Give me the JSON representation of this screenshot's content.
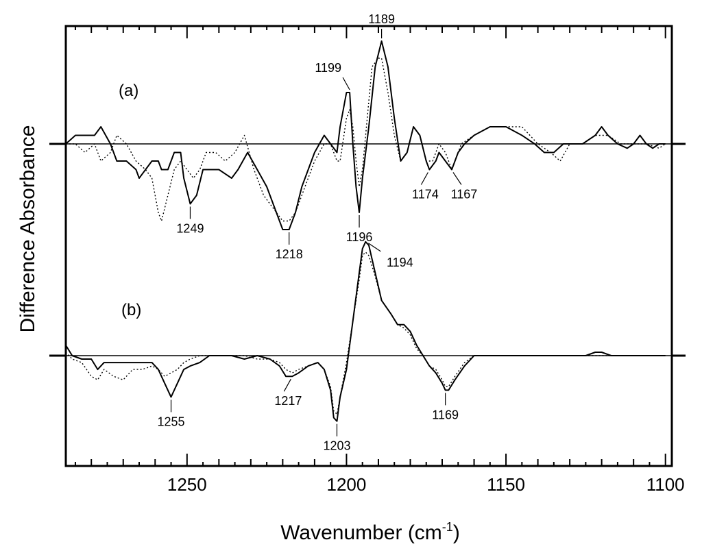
{
  "chart_data": {
    "type": "line",
    "xlabel": "Wavenumber (cm",
    "xlabel_sup": "-1",
    "xlabel_close": ")",
    "ylabel": "Difference Absorbance",
    "xlim": [
      1288,
      1098
    ],
    "x_reversed": true,
    "x_ticks": [
      "1250",
      "1200",
      "1150",
      "1100"
    ],
    "x_tick_values": [
      1250,
      1200,
      1150,
      1100
    ],
    "panels": [
      {
        "label": "(a)",
        "ylim": [
          -1.2,
          1.3
        ],
        "series": [
          {
            "style": "solid",
            "x": [
              1288,
              1285,
              1282,
              1279,
              1277,
              1274,
              1272,
              1269,
              1266,
              1265,
              1263,
              1261,
              1259,
              1258,
              1256,
              1254,
              1252,
              1251,
              1249,
              1247,
              1245,
              1243,
              1240,
              1236,
              1234,
              1231,
              1228,
              1225,
              1222,
              1220,
              1218,
              1216,
              1214,
              1212,
              1210,
              1207,
              1205,
              1203,
              1202,
              1200,
              1199,
              1198,
              1197,
              1196,
              1195,
              1193,
              1191,
              1189,
              1187,
              1185,
              1183,
              1181,
              1179,
              1177,
              1175,
              1174,
              1172,
              1171,
              1169,
              1167,
              1165,
              1163,
              1160,
              1155,
              1150,
              1145,
              1141,
              1138,
              1135,
              1132,
              1129,
              1126,
              1122,
              1120,
              1118,
              1115,
              1112,
              1110,
              1108,
              1106,
              1104,
              1102,
              1100
            ],
            "y": [
              0.0,
              0.1,
              0.1,
              0.1,
              0.2,
              0.0,
              -0.2,
              -0.2,
              -0.3,
              -0.4,
              -0.3,
              -0.2,
              -0.2,
              -0.3,
              -0.3,
              -0.1,
              -0.1,
              -0.4,
              -0.7,
              -0.6,
              -0.3,
              -0.3,
              -0.3,
              -0.4,
              -0.3,
              -0.1,
              -0.3,
              -0.5,
              -0.8,
              -1.0,
              -1.0,
              -0.8,
              -0.5,
              -0.3,
              -0.1,
              0.1,
              0.0,
              -0.1,
              0.2,
              0.6,
              0.6,
              0.0,
              -0.5,
              -0.8,
              -0.4,
              0.2,
              0.9,
              1.2,
              0.9,
              0.3,
              -0.2,
              -0.1,
              0.2,
              0.1,
              -0.2,
              -0.3,
              -0.2,
              -0.1,
              -0.2,
              -0.3,
              -0.1,
              0.0,
              0.1,
              0.2,
              0.2,
              0.1,
              0.0,
              -0.1,
              -0.1,
              0.0,
              0.0,
              0.0,
              0.1,
              0.2,
              0.1,
              0.0,
              -0.05,
              0.0,
              0.1,
              0.0,
              -0.05,
              0.0,
              0.0
            ]
          },
          {
            "style": "dotted",
            "x": [
              1288,
              1285,
              1282,
              1279,
              1277,
              1274,
              1272,
              1269,
              1266,
              1263,
              1261,
              1259,
              1258,
              1256,
              1254,
              1252,
              1250,
              1248,
              1246,
              1244,
              1241,
              1238,
              1235,
              1232,
              1229,
              1226,
              1222,
              1220,
              1218,
              1216,
              1213,
              1210,
              1207,
              1205,
              1203,
              1202,
              1200,
              1199,
              1198,
              1197,
              1196,
              1195,
              1193,
              1192,
              1190,
              1189,
              1187,
              1185,
              1183,
              1181,
              1179,
              1177,
              1175,
              1173,
              1171,
              1169,
              1167,
              1164,
              1160,
              1155,
              1150,
              1145,
              1140,
              1136,
              1133,
              1130,
              1126,
              1122,
              1118,
              1114,
              1110,
              1106,
              1102,
              1100
            ],
            "y": [
              0.0,
              0.0,
              -0.1,
              0.0,
              -0.2,
              -0.1,
              0.1,
              0.0,
              -0.2,
              -0.3,
              -0.4,
              -0.8,
              -0.9,
              -0.6,
              -0.3,
              -0.2,
              -0.3,
              -0.4,
              -0.3,
              -0.1,
              -0.1,
              -0.2,
              -0.1,
              0.1,
              -0.3,
              -0.6,
              -0.8,
              -0.9,
              -0.9,
              -0.8,
              -0.5,
              -0.2,
              0.0,
              0.0,
              -0.2,
              -0.2,
              0.3,
              0.4,
              0.2,
              -0.2,
              -0.5,
              -0.3,
              0.5,
              0.9,
              1.0,
              1.0,
              0.6,
              0.1,
              -0.2,
              -0.1,
              0.2,
              0.1,
              -0.2,
              -0.2,
              0.0,
              -0.1,
              -0.3,
              0.0,
              0.1,
              0.2,
              0.2,
              0.2,
              0.0,
              -0.1,
              -0.2,
              0.0,
              0.0,
              0.1,
              0.1,
              0.0,
              0.0,
              0.0,
              -0.05,
              0.0
            ]
          }
        ],
        "annotations": [
          {
            "text": "1189",
            "x": 1189,
            "y": 1.2,
            "side": "top"
          },
          {
            "text": "1199",
            "x": 1199,
            "y": 0.6,
            "side": "top-left"
          },
          {
            "text": "1249",
            "x": 1249,
            "y": -0.7,
            "side": "bottom"
          },
          {
            "text": "1218",
            "x": 1218,
            "y": -1.0,
            "side": "bottom"
          },
          {
            "text": "1196",
            "x": 1196,
            "y": -0.8,
            "side": "bottom"
          },
          {
            "text": "1174",
            "x": 1174,
            "y": -0.3,
            "side": "bottom-left"
          },
          {
            "text": "1167",
            "x": 1167,
            "y": -0.3,
            "side": "bottom-right"
          }
        ]
      },
      {
        "label": "(b)",
        "ylim": [
          -1.4,
          1.8
        ],
        "series": [
          {
            "style": "solid",
            "x": [
              1288,
              1286,
              1283,
              1280,
              1278,
              1276,
              1273,
              1270,
              1267,
              1264,
              1261,
              1259,
              1257,
              1255,
              1253,
              1251,
              1249,
              1246,
              1243,
              1240,
              1236,
              1232,
              1228,
              1224,
              1221,
              1219,
              1217,
              1215,
              1212,
              1209,
              1207,
              1205,
              1204,
              1203,
              1202,
              1200,
              1198,
              1196,
              1195,
              1194,
              1193,
              1191,
              1189,
              1186,
              1184,
              1182,
              1180,
              1178,
              1176,
              1174,
              1172,
              1170,
              1169,
              1168,
              1166,
              1163,
              1160,
              1155,
              1150,
              1145,
              1140,
              1135,
              1130,
              1125,
              1122,
              1120,
              1117,
              1114,
              1110,
              1106,
              1102,
              1100
            ],
            "y": [
              0.15,
              0.0,
              -0.05,
              -0.05,
              -0.2,
              -0.1,
              -0.1,
              -0.1,
              -0.1,
              -0.1,
              -0.1,
              -0.2,
              -0.4,
              -0.6,
              -0.4,
              -0.2,
              -0.15,
              -0.1,
              0.0,
              0.0,
              0.0,
              -0.05,
              0.0,
              -0.05,
              -0.15,
              -0.3,
              -0.3,
              -0.25,
              -0.15,
              -0.1,
              -0.2,
              -0.5,
              -0.9,
              -0.95,
              -0.6,
              -0.2,
              0.5,
              1.2,
              1.55,
              1.65,
              1.6,
              1.2,
              0.8,
              0.6,
              0.45,
              0.45,
              0.35,
              0.15,
              0.0,
              -0.15,
              -0.25,
              -0.4,
              -0.5,
              -0.5,
              -0.35,
              -0.15,
              0.0,
              0.0,
              0.0,
              0.0,
              0.0,
              0.0,
              0.0,
              0.0,
              0.05,
              0.05,
              0.0,
              0.0,
              0.0,
              0.0,
              0.0,
              0.0
            ]
          },
          {
            "style": "dotted",
            "x": [
              1288,
              1286,
              1283,
              1280,
              1278,
              1276,
              1273,
              1270,
              1267,
              1264,
              1261,
              1259,
              1257,
              1255,
              1253,
              1251,
              1249,
              1246,
              1243,
              1240,
              1236,
              1232,
              1228,
              1224,
              1221,
              1219,
              1217,
              1215,
              1212,
              1209,
              1207,
              1205,
              1204,
              1203,
              1202,
              1200,
              1198,
              1196,
              1195,
              1194,
              1193,
              1191,
              1189,
              1186,
              1184,
              1182,
              1180,
              1178,
              1176,
              1174,
              1172,
              1170,
              1169,
              1168,
              1166,
              1163,
              1160,
              1155,
              1150,
              1145,
              1140,
              1135,
              1130,
              1125,
              1122,
              1120,
              1117,
              1114,
              1110,
              1106,
              1102,
              1100
            ],
            "y": [
              0.05,
              -0.05,
              -0.1,
              -0.3,
              -0.35,
              -0.2,
              -0.3,
              -0.35,
              -0.2,
              -0.2,
              -0.15,
              -0.2,
              -0.3,
              -0.25,
              -0.2,
              -0.1,
              -0.05,
              0.0,
              0.0,
              0.0,
              0.0,
              0.0,
              -0.05,
              -0.05,
              -0.1,
              -0.2,
              -0.25,
              -0.2,
              -0.15,
              -0.1,
              -0.2,
              -0.45,
              -0.8,
              -0.85,
              -0.6,
              -0.1,
              0.5,
              1.1,
              1.45,
              1.5,
              1.45,
              1.15,
              0.8,
              0.6,
              0.45,
              0.4,
              0.3,
              0.1,
              0.0,
              -0.15,
              -0.2,
              -0.35,
              -0.45,
              -0.45,
              -0.3,
              -0.1,
              0.0,
              0.0,
              0.0,
              0.0,
              0.0,
              0.0,
              0.0,
              0.0,
              0.0,
              0.0,
              0.0,
              0.0,
              0.0,
              0.0,
              0.0,
              0.0
            ]
          }
        ],
        "annotations": [
          {
            "text": "1194",
            "x": 1194,
            "y": 1.65,
            "side": "right"
          },
          {
            "text": "1255",
            "x": 1255,
            "y": -0.6,
            "side": "bottom"
          },
          {
            "text": "1217",
            "x": 1217,
            "y": -0.3,
            "side": "bottom-left"
          },
          {
            "text": "1203",
            "x": 1203,
            "y": -0.95,
            "side": "bottom"
          },
          {
            "text": "1169",
            "x": 1169,
            "y": -0.5,
            "side": "bottom"
          }
        ]
      }
    ],
    "grid": false
  }
}
